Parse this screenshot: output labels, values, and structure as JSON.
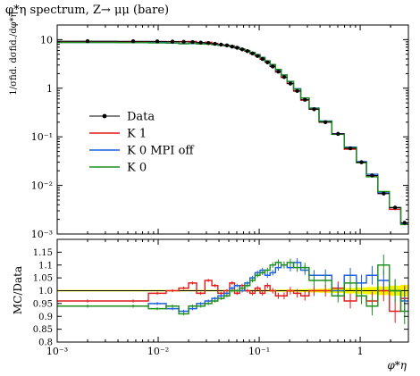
{
  "chart_data": {
    "type": "line",
    "title": "φ*η spectrum, Z→ μμ (bare)",
    "xlabel": "φ*η",
    "ylabel": "1/σfid. dσfid./dφ*η",
    "ratio_ylabel": "MC/Data",
    "x_scale": "log",
    "xlim": [
      0.001,
      3.0
    ],
    "ylim": [
      0.001,
      20
    ],
    "ratio_ylim": [
      0.8,
      1.2
    ],
    "x_ticks": [
      {
        "value": 0.001,
        "label": "10⁻³"
      },
      {
        "value": 0.01,
        "label": "10⁻²"
      },
      {
        "value": 0.1,
        "label": "10⁻¹"
      },
      {
        "value": 1,
        "label": "1"
      }
    ],
    "y_ticks": [
      {
        "value": 10,
        "label": "10"
      },
      {
        "value": 1,
        "label": "1"
      },
      {
        "value": 0.1,
        "label": "10⁻¹"
      },
      {
        "value": 0.01,
        "label": "10⁻²"
      },
      {
        "value": 0.001,
        "label": "10⁻³"
      }
    ],
    "ratio_ticks": [
      "0.8",
      "0.85",
      "0.9",
      "0.95",
      "1.0",
      "1.05",
      "1.1",
      "1.15"
    ],
    "legend_position": "left-middle",
    "bin_edges": [
      0.001,
      0.004,
      0.008,
      0.012,
      0.016,
      0.02,
      0.024,
      0.029,
      0.034,
      0.039,
      0.045,
      0.051,
      0.057,
      0.064,
      0.072,
      0.081,
      0.091,
      0.102,
      0.114,
      0.128,
      0.145,
      0.165,
      0.189,
      0.219,
      0.258,
      0.312,
      0.391,
      0.524,
      0.695,
      0.918,
      1.153,
      1.496,
      1.947,
      2.522,
      3.0
    ],
    "series": [
      {
        "name": "Data",
        "color": "#000000",
        "style": "points",
        "values": [
          9.3,
          9.25,
          9.2,
          9.1,
          9.0,
          8.9,
          8.7,
          8.5,
          8.2,
          7.9,
          7.6,
          7.2,
          6.8,
          6.3,
          5.8,
          5.2,
          4.6,
          4.0,
          3.4,
          2.8,
          2.2,
          1.7,
          1.25,
          0.88,
          0.58,
          0.37,
          0.2,
          0.115,
          0.058,
          0.03,
          0.016,
          0.0068,
          0.0035,
          0.0017
        ]
      },
      {
        "name": "K 1",
        "color": "#e41a1c",
        "style": "hist",
        "ratio": [
          0.96,
          0.96,
          0.99,
          1.0,
          1.01,
          1.03,
          0.99,
          1.04,
          1.02,
          0.99,
          1.0,
          1.03,
          0.99,
          1.02,
          1.0,
          0.99,
          1.01,
          0.99,
          1.02,
          1.0,
          0.98,
          0.98,
          1.0,
          0.99,
          0.98,
          1.0,
          1.0,
          1.01,
          0.96,
          0.98,
          0.96,
          1.0,
          0.92,
          0.97
        ]
      },
      {
        "name": "K 0 MPI off",
        "color": "#1f5fe0",
        "style": "hist",
        "ratio": [
          0.94,
          0.94,
          0.95,
          0.93,
          0.92,
          0.93,
          0.95,
          0.96,
          0.97,
          0.98,
          0.99,
          1.01,
          1.02,
          1.0,
          1.03,
          1.05,
          1.07,
          1.08,
          1.06,
          1.07,
          1.09,
          1.1,
          1.09,
          1.11,
          1.08,
          1.06,
          1.06,
          1.0,
          1.06,
          1.03,
          1.06,
          1.04,
          1.0,
          0.96
        ]
      },
      {
        "name": "K 0",
        "color": "#1f8f1f",
        "style": "hist",
        "ratio": [
          0.94,
          0.94,
          0.93,
          0.94,
          0.91,
          0.94,
          0.94,
          0.95,
          0.96,
          0.97,
          0.98,
          1.0,
          1.0,
          1.01,
          1.02,
          1.04,
          1.06,
          1.07,
          1.08,
          1.1,
          1.11,
          1.1,
          1.11,
          1.09,
          1.09,
          1.04,
          1.04,
          0.98,
          1.03,
          0.98,
          0.94,
          1.1,
          1.0,
          0.92
        ]
      }
    ],
    "legend_entries": [
      "Data",
      "K 1",
      "K 0 MPI off",
      "K 0"
    ]
  }
}
